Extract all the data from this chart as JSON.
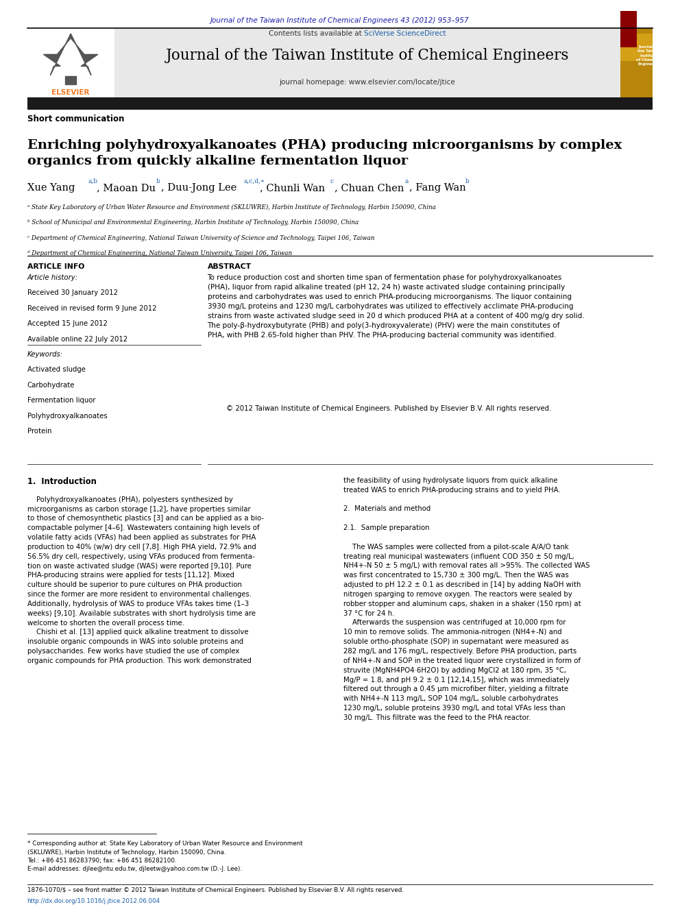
{
  "page_width": 9.92,
  "page_height": 13.23,
  "bg_color": "#ffffff",
  "top_journal_ref": "Journal of the Taiwan Institute of Chemical Engineers 43 (2012) 953–957",
  "top_journal_ref_color": "#1a1aaa",
  "contents_line": "Contents lists available at ",
  "sciverse_text": "SciVerse ScienceDirect",
  "journal_title": "Journal of the Taiwan Institute of Chemical Engineers",
  "journal_homepage": "journal homepage: www.elsevier.com/locate/jtice",
  "header_bg": "#e8e8e8",
  "article_type": "Short communication",
  "paper_title": "Enriching polyhydroxyalkanoates (PHA) producing microorganisms by complex\norganics from quickly alkaline fermentation liquor",
  "affiliation_a": "ᵃ State Key Laboratory of Urban Water Resource and Environment (SKLUWRE), Harbin Institute of Technology, Harbin 150090, China",
  "affiliation_b": "ᵇ School of Municipal and Environmental Engineering, Harbin Institute of Technology, Harbin 150090, China",
  "affiliation_c": "ᶜ Department of Chemical Engineering, National Taiwan University of Science and Technology, Taipei 106, Taiwan",
  "affiliation_d": "ᵈ Department of Chemical Engineering, National Taiwan University, Taipei 106, Taiwan",
  "article_info_header": "ARTICLE INFO",
  "abstract_header": "ABSTRACT",
  "article_history_label": "Article history:",
  "received": "Received 30 January 2012",
  "received_revised": "Received in revised form 9 June 2012",
  "accepted": "Accepted 15 June 2012",
  "available": "Available online 22 July 2012",
  "keywords_label": "Keywords:",
  "keywords": [
    "Activated sludge",
    "Carbohydrate",
    "Fermentation liquor",
    "Polyhydroxyalkanoates",
    "Protein"
  ],
  "abstract_text": "To reduce production cost and shorten time span of fermentation phase for polyhydroxyalkanoates\n(PHA), liquor from rapid alkaline treated (pH 12, 24 h) waste activated sludge containing principally\nproteins and carbohydrates was used to enrich PHA-producing microorganisms. The liquor containing\n3930 mg/L proteins and 1230 mg/L carbohydrates was utilized to effectively acclimate PHA-producing\nstrains from waste activated sludge seed in 20 d which produced PHA at a content of 400 mg/g dry solid.\nThe poly-β-hydroxybutyrate (PHB) and poly(3-hydroxyvalerate) (PHV) were the main constitutes of\nPHA, with PHB 2.65-fold higher than PHV. The PHA-producing bacterial community was identified.",
  "abstract_copyright": "© 2012 Taiwan Institute of Chemical Engineers. Published by Elsevier B.V. All rights reserved.",
  "intro_header": "1.  Introduction",
  "intro_text": "    Polyhydroxyalkanoates (PHA), polyesters synthesized by\nmicroorganisms as carbon storage [1,2], have properties similar\nto those of chemosynthetic plastics [3] and can be applied as a bio-\ncompactable polymer [4–6]. Wastewaters containing high levels of\nvolatile fatty acids (VFAs) had been applied as substrates for PHA\nproduction to 40% (w/w) dry cell [7,8]. High PHA yield, 72.9% and\n56.5% dry cell, respectively, using VFAs produced from fermenta-\ntion on waste activated sludge (WAS) were reported [9,10]. Pure\nPHA-producing strains were applied for tests [11,12]. Mixed\nculture should be superior to pure cultures on PHA production\nsince the former are more resident to environmental challenges.\nAdditionally, hydrolysis of WAS to produce VFAs takes time (1–3\nweeks) [9,10]. Available substrates with short hydrolysis time are\nwelcome to shorten the overall process time.\n    Chishi et al. [13] applied quick alkaline treatment to dissolve\ninsoluble organic compounds in WAS into soluble proteins and\npolysaccharides. Few works have studied the use of complex\norganic compounds for PHA production. This work demonstrated",
  "right_intro_text": "the feasibility of using hydrolysate liquors from quick alkaline\ntreated WAS to enrich PHA-producing strains and to yield PHA.\n\n2.  Materials and method\n\n2.1.  Sample preparation\n\n    The WAS samples were collected from a pilot-scale A/A/O tank\ntreating real municipal wastewaters (influent COD 350 ± 50 mg/L,\nNH4+-N 50 ± 5 mg/L) with removal rates all >95%. The collected WAS\nwas first concentrated to 15,730 ± 300 mg/L. Then the WAS was\nadjusted to pH 12.2 ± 0.1 as described in [14] by adding NaOH with\nnitrogen sparging to remove oxygen. The reactors were sealed by\nrobber stopper and aluminum caps, shaken in a shaker (150 rpm) at\n37 °C for 24 h.\n    Afterwards the suspension was centrifuged at 10,000 rpm for\n10 min to remove solids. The ammonia-nitrogen (NH4+-N) and\nsoluble ortho-phosphate (SOP) in supernatant were measured as\n282 mg/L and 176 mg/L, respectively. Before PHA production, parts\nof NH4+-N and SOP in the treated liquor were crystallized in form of\nstruvite (MgNH4PO4·6H2O) by adding MgCl2 at 180 rpm, 35 °C,\nMg/P = 1.8, and pH 9.2 ± 0.1 [12,14,15], which was immediately\nfiltered out through a 0.45 μm microfiber filter, yielding a filtrate\nwith NH4+-N 113 mg/L, SOP 104 mg/L, soluble carbohydrates\n1230 mg/L, soluble proteins 3930 mg/L and total VFAs less than\n30 mg/L. This filtrate was the feed to the PHA reactor.",
  "footnote_star": "* Corresponding author at: State Key Laboratory of Urban Water Resource and Environment\n(SKLUWRE), Harbin Institute of Technology, Harbin 150090, China.\nTel.: +86 451 86283790; fax: +86 451 86282100.\nE-mail addresses: djlee@ntu.edu.tw, djleetw@yahoo.com.tw (D.-J. Lee).",
  "bottom_issn": "1876-1070/$ – see front matter © 2012 Taiwan Institute of Chemical Engineers. Published by Elsevier B.V. All rights reserved.",
  "bottom_doi": "http://dx.doi.org/10.1016/j.jtice.2012.06.004",
  "elsevier_orange": "#f47920",
  "link_color": "#1a5fa8",
  "black": "#000000",
  "dark_gray": "#333333",
  "header_bar_color": "#1a1a1a"
}
